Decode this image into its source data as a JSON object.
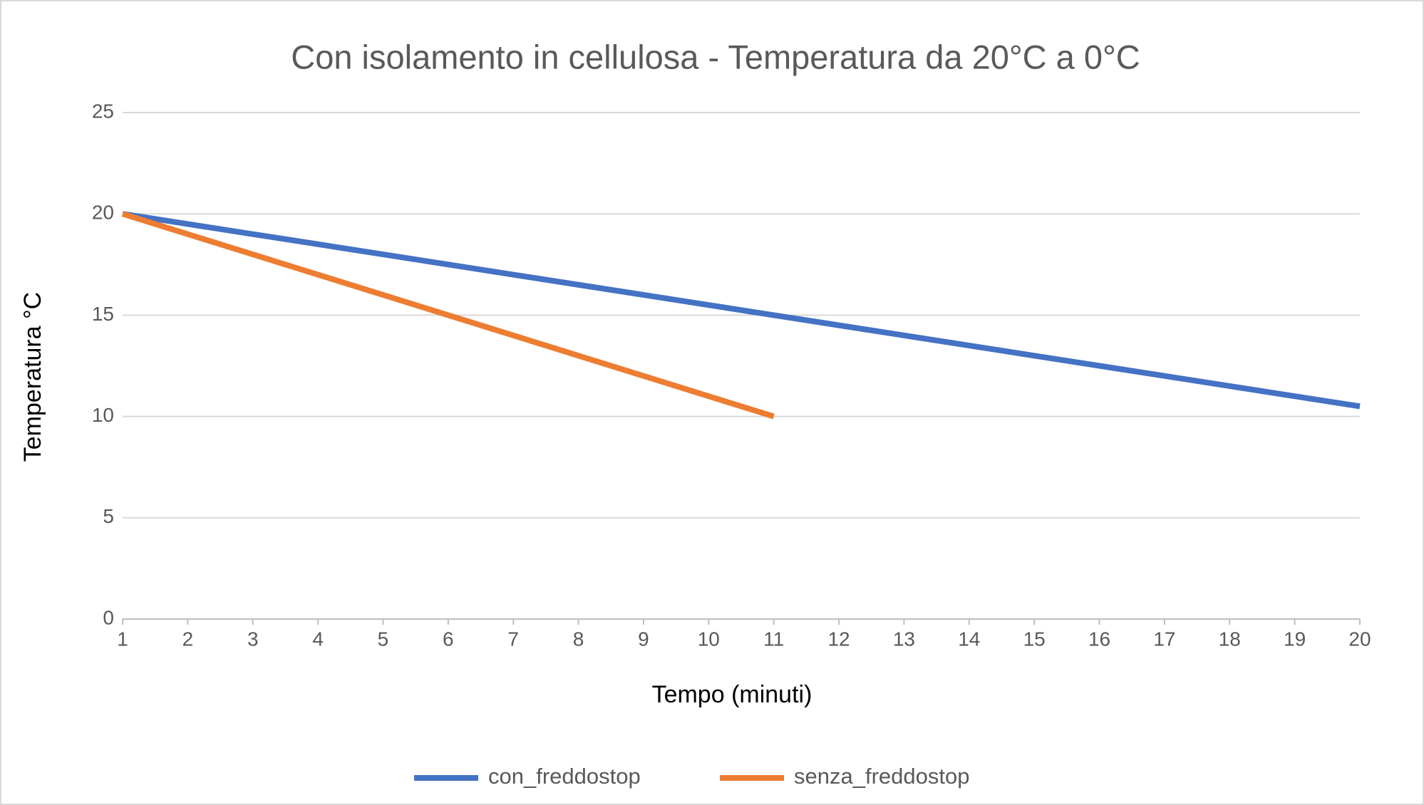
{
  "chart_data": {
    "type": "line",
    "title": "Con isolamento in cellulosa - Temperatura da 20°C a 0°C",
    "x_label": "Tempo (minuti)",
    "y_label": "Temperatura °C",
    "x": [
      1,
      2,
      3,
      4,
      5,
      6,
      7,
      8,
      9,
      10,
      11,
      12,
      13,
      14,
      15,
      16,
      17,
      18,
      19,
      20
    ],
    "series": [
      {
        "name": "con_freddostop",
        "color": "#4472c4",
        "values": [
          20,
          19.5,
          19,
          18.5,
          18,
          17.5,
          17,
          16.5,
          16,
          15.5,
          15,
          14.5,
          14,
          13.5,
          13,
          12.5,
          12,
          11.5,
          11,
          10.5
        ]
      },
      {
        "name": "senza_freddostop",
        "color": "#ed7d31",
        "values": [
          20,
          19,
          18,
          17,
          16,
          15,
          14,
          13,
          12,
          11,
          10,
          null,
          null,
          null,
          null,
          null,
          null,
          null,
          null,
          null
        ]
      }
    ],
    "xlim": [
      1,
      20
    ],
    "xticks": [
      1,
      2,
      3,
      4,
      5,
      6,
      7,
      8,
      9,
      10,
      11,
      12,
      13,
      14,
      15,
      16,
      17,
      18,
      19,
      20
    ],
    "ylim": [
      0,
      25
    ],
    "yticks": [
      0,
      5,
      10,
      15,
      20,
      25
    ],
    "grid": true,
    "legend": "bottom"
  }
}
